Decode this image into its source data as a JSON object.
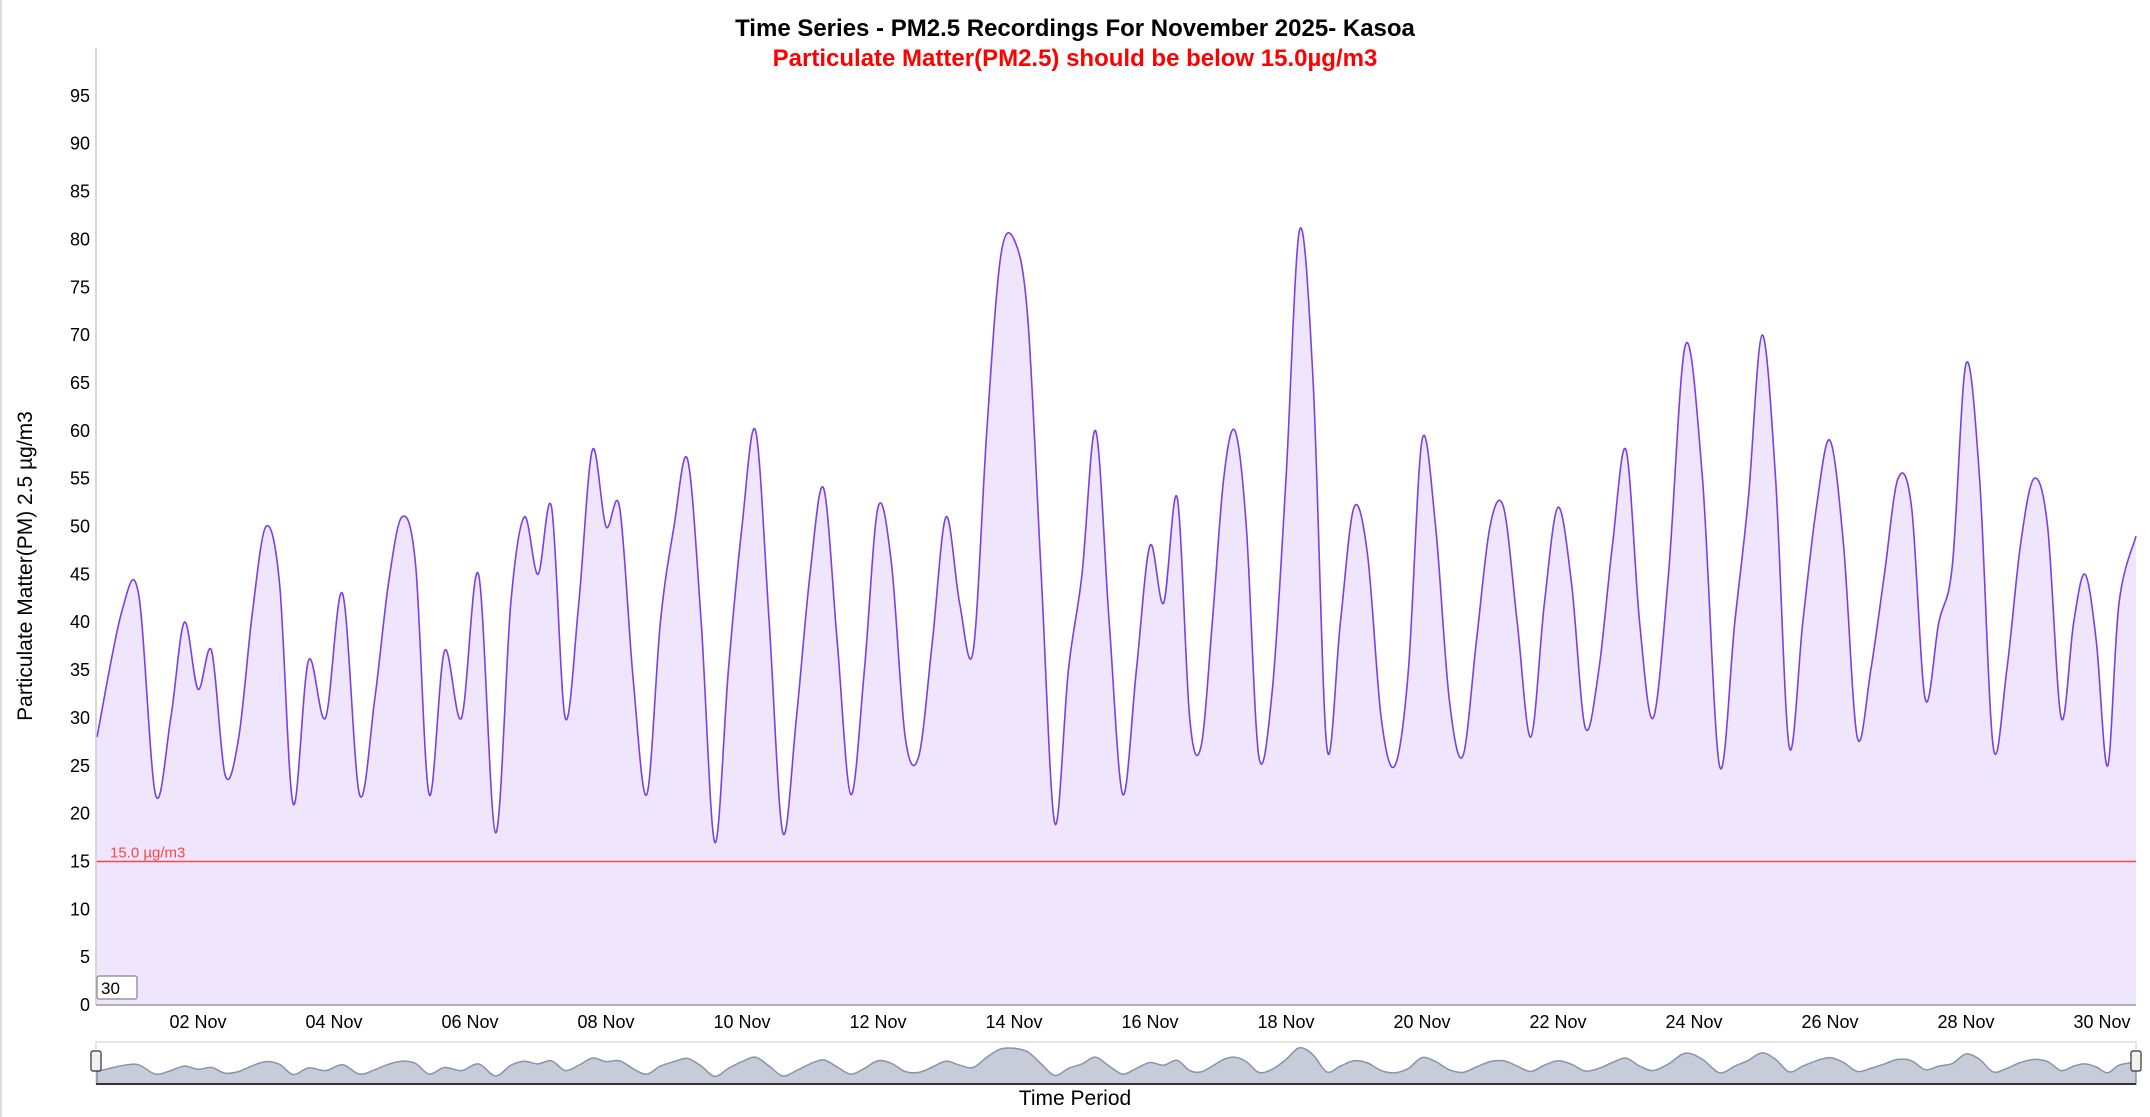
{
  "chart_data": {
    "type": "area",
    "title": "Time Series - PM2.5 Recordings For November 2025- Kasoa",
    "subtitle": "Particulate Matter(PM2.5) should be below 15.0µg/m3",
    "xlabel": "Time Period",
    "ylabel": "Particulate Matter(PM) 2.5 µg/m3",
    "ylim": [
      0,
      100
    ],
    "yticks": [
      "0",
      "5",
      "10",
      "15",
      "20",
      "25",
      "30",
      "35",
      "40",
      "45",
      "50",
      "55",
      "60",
      "65",
      "70",
      "75",
      "80",
      "85",
      "90",
      "95"
    ],
    "x_start": "2025-11-01",
    "x_end": "2025-11-30",
    "xticks": [
      "02 Nov",
      "04 Nov",
      "06 Nov",
      "08 Nov",
      "10 Nov",
      "12 Nov",
      "14 Nov",
      "16 Nov",
      "18 Nov",
      "20 Nov",
      "22 Nov",
      "24 Nov",
      "26 Nov",
      "28 Nov",
      "30 Nov"
    ],
    "threshold": {
      "value": 15.0,
      "label": "15.0 µg/m3",
      "color": "#ff4444"
    },
    "range_input": "30",
    "grid": false,
    "colors": {
      "line": "#7b3fe4",
      "fill": "#efe6fd",
      "title": "#000000",
      "subtitle": "#ff0000",
      "navigator": "#8a93ad"
    },
    "series": [
      {
        "values": [
          [
            "2025-11-01",
            28
          ],
          [
            "2025-11-01",
            41
          ],
          [
            "2025-11-01",
            43
          ],
          [
            "2025-11-01",
            22
          ],
          [
            "2025-11-02",
            30
          ],
          [
            "2025-11-02",
            40
          ],
          [
            "2025-11-02",
            33
          ],
          [
            "2025-11-02",
            37
          ],
          [
            "2025-11-02",
            24
          ],
          [
            "2025-11-03",
            28
          ],
          [
            "2025-11-03",
            41
          ],
          [
            "2025-11-03",
            50
          ],
          [
            "2025-11-03",
            44
          ],
          [
            "2025-11-03",
            21
          ],
          [
            "2025-11-04",
            36
          ],
          [
            "2025-11-04",
            30
          ],
          [
            "2025-11-04",
            43
          ],
          [
            "2025-11-04",
            22
          ],
          [
            "2025-11-05",
            32
          ],
          [
            "2025-11-05",
            44
          ],
          [
            "2025-11-05",
            51
          ],
          [
            "2025-11-05",
            46
          ],
          [
            "2025-11-05",
            22
          ],
          [
            "2025-11-06",
            37
          ],
          [
            "2025-11-06",
            30
          ],
          [
            "2025-11-06",
            45
          ],
          [
            "2025-11-06",
            18
          ],
          [
            "2025-11-07",
            42
          ],
          [
            "2025-11-07",
            51
          ],
          [
            "2025-11-07",
            45
          ],
          [
            "2025-11-07",
            52
          ],
          [
            "2025-11-07",
            30
          ],
          [
            "2025-11-08",
            42
          ],
          [
            "2025-11-08",
            58
          ],
          [
            "2025-11-08",
            50
          ],
          [
            "2025-11-08",
            52
          ],
          [
            "2025-11-08",
            34
          ],
          [
            "2025-11-09",
            22
          ],
          [
            "2025-11-09",
            40
          ],
          [
            "2025-11-09",
            50
          ],
          [
            "2025-11-09",
            57
          ],
          [
            "2025-11-09",
            40
          ],
          [
            "2025-11-10",
            17
          ],
          [
            "2025-11-10",
            35
          ],
          [
            "2025-11-10",
            50
          ],
          [
            "2025-11-10",
            60
          ],
          [
            "2025-11-10",
            40
          ],
          [
            "2025-11-11",
            18
          ],
          [
            "2025-11-11",
            30
          ],
          [
            "2025-11-11",
            45
          ],
          [
            "2025-11-11",
            54
          ],
          [
            "2025-11-11",
            38
          ],
          [
            "2025-11-12",
            22
          ],
          [
            "2025-11-12",
            35
          ],
          [
            "2025-11-12",
            52
          ],
          [
            "2025-11-12",
            46
          ],
          [
            "2025-11-12",
            28
          ],
          [
            "2025-11-13",
            26
          ],
          [
            "2025-11-13",
            38
          ],
          [
            "2025-11-13",
            51
          ],
          [
            "2025-11-13",
            42
          ],
          [
            "2025-11-13",
            37
          ],
          [
            "2025-11-14",
            60
          ],
          [
            "2025-11-14",
            78
          ],
          [
            "2025-11-14",
            80
          ],
          [
            "2025-11-14",
            72
          ],
          [
            "2025-11-14",
            45
          ],
          [
            "2025-11-15",
            19
          ],
          [
            "2025-11-15",
            35
          ],
          [
            "2025-11-15",
            45
          ],
          [
            "2025-11-15",
            60
          ],
          [
            "2025-11-15",
            40
          ],
          [
            "2025-11-16",
            22
          ],
          [
            "2025-11-16",
            35
          ],
          [
            "2025-11-16",
            48
          ],
          [
            "2025-11-16",
            42
          ],
          [
            "2025-11-16",
            53
          ],
          [
            "2025-11-17",
            30
          ],
          [
            "2025-11-17",
            27
          ],
          [
            "2025-11-17",
            40
          ],
          [
            "2025-11-17",
            55
          ],
          [
            "2025-11-17",
            60
          ],
          [
            "2025-11-17",
            50
          ],
          [
            "2025-11-18",
            26
          ],
          [
            "2025-11-18",
            33
          ],
          [
            "2025-11-18",
            55
          ],
          [
            "2025-11-18",
            81
          ],
          [
            "2025-11-18",
            65
          ],
          [
            "2025-11-19",
            27
          ],
          [
            "2025-11-19",
            40
          ],
          [
            "2025-11-19",
            52
          ],
          [
            "2025-11-19",
            47
          ],
          [
            "2025-11-19",
            30
          ],
          [
            "2025-11-20",
            25
          ],
          [
            "2025-11-20",
            35
          ],
          [
            "2025-11-20",
            59
          ],
          [
            "2025-11-20",
            50
          ],
          [
            "2025-11-20",
            32
          ],
          [
            "2025-11-21",
            26
          ],
          [
            "2025-11-21",
            38
          ],
          [
            "2025-11-21",
            50
          ],
          [
            "2025-11-21",
            52
          ],
          [
            "2025-11-21",
            40
          ],
          [
            "2025-11-22",
            28
          ],
          [
            "2025-11-22",
            42
          ],
          [
            "2025-11-22",
            52
          ],
          [
            "2025-11-22",
            44
          ],
          [
            "2025-11-22",
            29
          ],
          [
            "2025-11-23",
            35
          ],
          [
            "2025-11-23",
            48
          ],
          [
            "2025-11-23",
            58
          ],
          [
            "2025-11-23",
            40
          ],
          [
            "2025-11-23",
            30
          ],
          [
            "2025-11-24",
            45
          ],
          [
            "2025-11-24",
            69
          ],
          [
            "2025-11-24",
            55
          ],
          [
            "2025-11-24",
            25
          ],
          [
            "2025-11-25",
            40
          ],
          [
            "2025-11-25",
            53
          ],
          [
            "2025-11-25",
            70
          ],
          [
            "2025-11-25",
            55
          ],
          [
            "2025-11-25",
            27
          ],
          [
            "2025-11-26",
            40
          ],
          [
            "2025-11-26",
            52
          ],
          [
            "2025-11-26",
            59
          ],
          [
            "2025-11-26",
            48
          ],
          [
            "2025-11-26",
            28
          ],
          [
            "2025-11-27",
            35
          ],
          [
            "2025-11-27",
            45
          ],
          [
            "2025-11-27",
            55
          ],
          [
            "2025-11-27",
            52
          ],
          [
            "2025-11-27",
            32
          ],
          [
            "2025-11-28",
            40
          ],
          [
            "2025-11-28",
            46
          ],
          [
            "2025-11-28",
            67
          ],
          [
            "2025-11-28",
            55
          ],
          [
            "2025-11-28",
            27
          ],
          [
            "2025-11-29",
            35
          ],
          [
            "2025-11-29",
            48
          ],
          [
            "2025-11-29",
            55
          ],
          [
            "2025-11-29",
            50
          ],
          [
            "2025-11-29",
            30
          ],
          [
            "2025-11-30",
            40
          ],
          [
            "2025-11-30",
            45
          ],
          [
            "2025-11-30",
            38
          ],
          [
            "2025-11-30",
            25
          ],
          [
            "2025-11-30",
            42
          ],
          [
            "2025-11-30",
            49
          ]
        ]
      }
    ]
  }
}
